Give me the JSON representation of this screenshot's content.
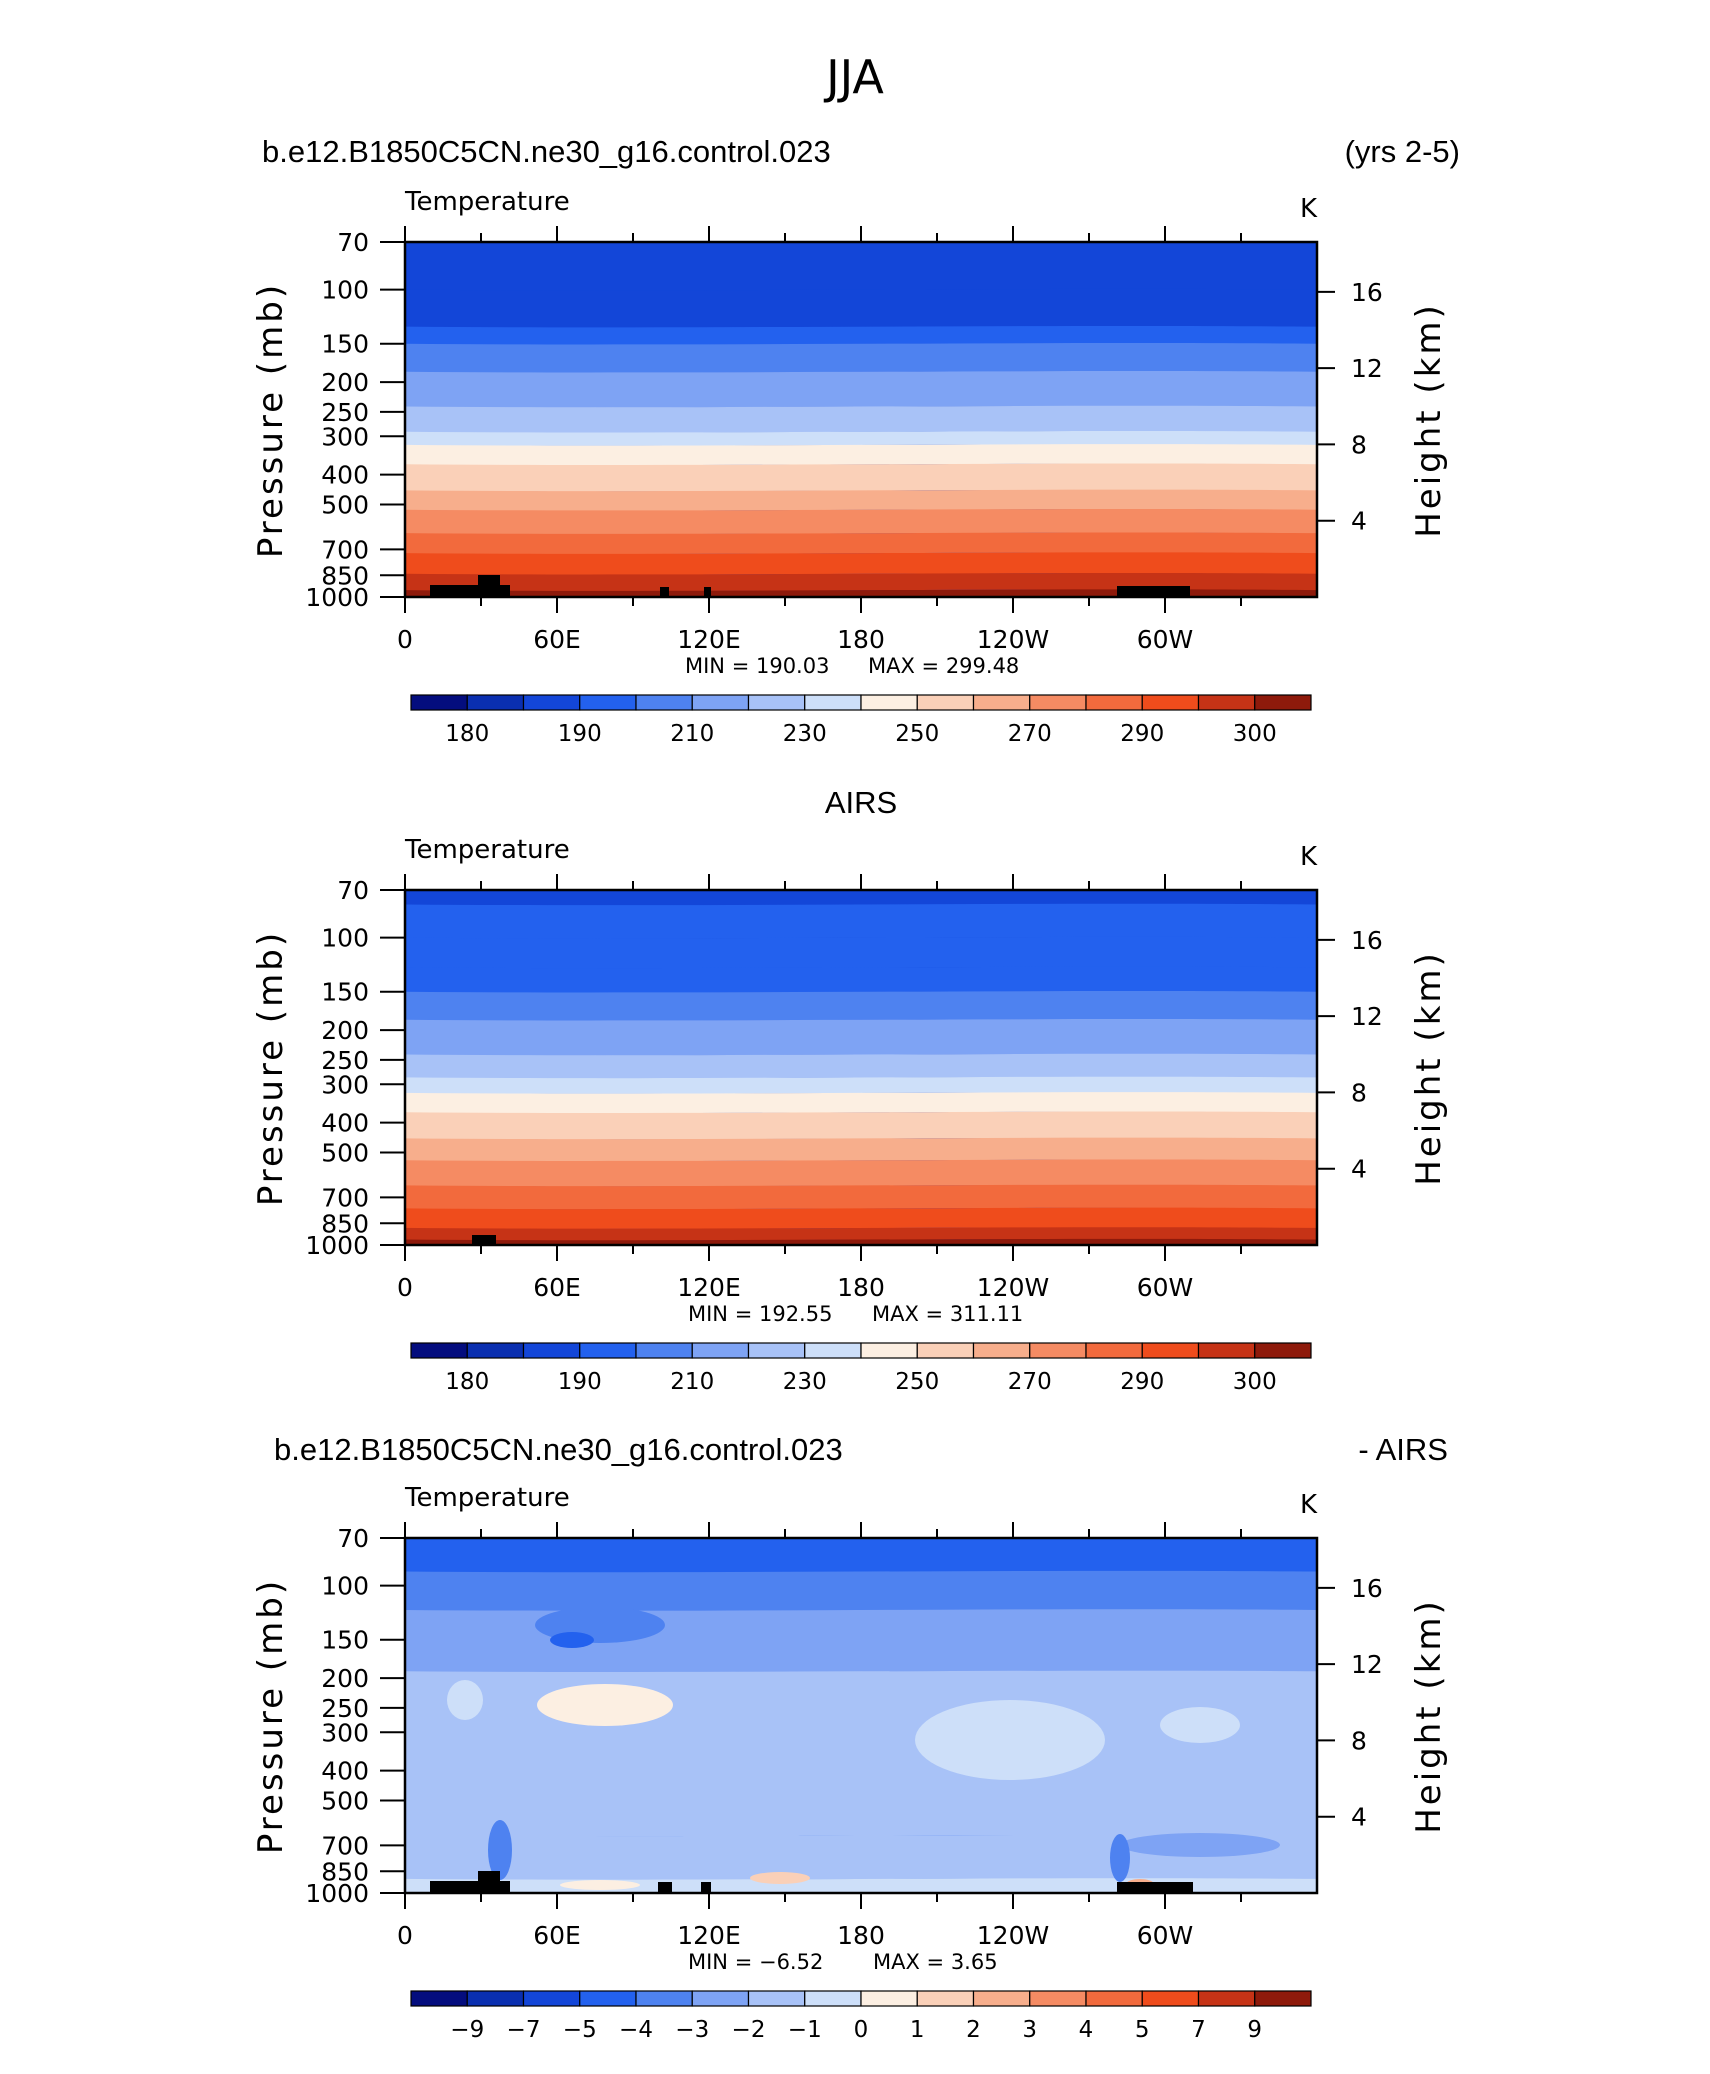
{
  "figure_title": "JJA",
  "chart_data": [
    {
      "type": "heatmap",
      "title_left": "b.e12.B1850C5CN.ne30_g16.control.023",
      "title_right": "(yrs 2-5)",
      "title_center": "",
      "variable": "Temperature",
      "units": "K",
      "ylabel": "Pressure (mb)",
      "y2label": "Height (km)",
      "y_ticks": [
        "70",
        "100",
        "150",
        "200",
        "250",
        "300",
        "400",
        "500",
        "700",
        "850",
        "1000"
      ],
      "y2_ticks": [
        "4",
        "8",
        "12",
        "16"
      ],
      "x_ticks": [
        "0",
        "60E",
        "120E",
        "180",
        "120W",
        "60W"
      ],
      "min_label": "MIN = 190.03",
      "max_label": "MAX = 299.48",
      "min": 190.03,
      "max": 299.48,
      "colorbar_labels": [
        "180",
        "190",
        "210",
        "230",
        "250",
        "270",
        "290",
        "300"
      ],
      "colorbar_colors": [
        "#040d7e",
        "#0a2fb0",
        "#1346d8",
        "#2361ee",
        "#4e82f0",
        "#7ea3f4",
        "#a8c2f7",
        "#cddff9",
        "#fcefe2",
        "#fad0b8",
        "#f7ae8c",
        "#f58b63",
        "#f26a3d",
        "#ef4c1c",
        "#c63316",
        "#8e1a0b"
      ],
      "profile": [
        [
          70,
          2
        ],
        [
          100,
          2
        ],
        [
          132,
          3
        ],
        [
          150,
          4
        ],
        [
          185,
          5
        ],
        [
          240,
          6
        ],
        [
          290,
          7
        ],
        [
          320,
          8
        ],
        [
          370,
          9
        ],
        [
          450,
          10
        ],
        [
          520,
          11
        ],
        [
          620,
          12
        ],
        [
          720,
          13
        ],
        [
          840,
          14
        ],
        [
          950,
          15
        ],
        [
          1000,
          15
        ]
      ]
    },
    {
      "type": "heatmap",
      "title_left": "",
      "title_right": "",
      "title_center": "AIRS",
      "variable": "Temperature",
      "units": "K",
      "ylabel": "Pressure (mb)",
      "y2label": "Height (km)",
      "y_ticks": [
        "70",
        "100",
        "150",
        "200",
        "250",
        "300",
        "400",
        "500",
        "700",
        "850",
        "1000"
      ],
      "y2_ticks": [
        "4",
        "8",
        "12",
        "16"
      ],
      "x_ticks": [
        "0",
        "60E",
        "120E",
        "180",
        "120W",
        "60W"
      ],
      "min_label": "MIN = 192.55",
      "max_label": "MAX = 311.11",
      "min": 192.55,
      "max": 311.11,
      "colorbar_labels": [
        "180",
        "190",
        "210",
        "230",
        "250",
        "270",
        "290",
        "300"
      ],
      "colorbar_colors": [
        "#040d7e",
        "#0a2fb0",
        "#1346d8",
        "#2361ee",
        "#4e82f0",
        "#7ea3f4",
        "#a8c2f7",
        "#cddff9",
        "#fcefe2",
        "#fad0b8",
        "#f7ae8c",
        "#f58b63",
        "#f26a3d",
        "#ef4c1c",
        "#c63316",
        "#8e1a0b"
      ],
      "profile": [
        [
          70,
          2
        ],
        [
          78,
          3
        ],
        [
          100,
          3
        ],
        [
          125,
          3
        ],
        [
          150,
          4
        ],
        [
          185,
          5
        ],
        [
          240,
          6
        ],
        [
          285,
          7
        ],
        [
          320,
          8
        ],
        [
          370,
          9
        ],
        [
          450,
          10
        ],
        [
          530,
          11
        ],
        [
          640,
          12
        ],
        [
          760,
          13
        ],
        [
          880,
          14
        ],
        [
          960,
          15
        ],
        [
          1000,
          15
        ]
      ]
    },
    {
      "type": "heatmap",
      "title_left": "b.e12.B1850C5CN.ne30_g16.control.023",
      "title_right": "- AIRS",
      "title_center": "",
      "variable": "Temperature",
      "units": "K",
      "ylabel": "Pressure (mb)",
      "y2label": "Height (km)",
      "y_ticks": [
        "70",
        "100",
        "150",
        "200",
        "250",
        "300",
        "400",
        "500",
        "700",
        "850",
        "1000"
      ],
      "y2_ticks": [
        "4",
        "8",
        "12",
        "16"
      ],
      "x_ticks": [
        "0",
        "60E",
        "120E",
        "180",
        "120W",
        "60W"
      ],
      "min_label": "MIN = −6.52",
      "max_label": "MAX = 3.65",
      "min": -6.52,
      "max": 3.65,
      "colorbar_labels": [
        "−9",
        "−7",
        "−5",
        "−4",
        "−3",
        "−2",
        "−1",
        "0",
        "1",
        "2",
        "3",
        "4",
        "5",
        "7",
        "9"
      ],
      "colorbar_colors": [
        "#040d7e",
        "#0a2fb0",
        "#1346d8",
        "#2361ee",
        "#4e82f0",
        "#7ea3f4",
        "#a8c2f7",
        "#cddff9",
        "#fcefe2",
        "#fad0b8",
        "#f7ae8c",
        "#f58b63",
        "#f26a3d",
        "#ef4c1c",
        "#c63316",
        "#8e1a0b"
      ],
      "profile": [
        [
          70,
          3
        ],
        [
          90,
          4
        ],
        [
          120,
          5
        ],
        [
          190,
          6
        ],
        [
          650,
          6
        ],
        [
          900,
          7
        ],
        [
          1000,
          7
        ]
      ]
    }
  ]
}
